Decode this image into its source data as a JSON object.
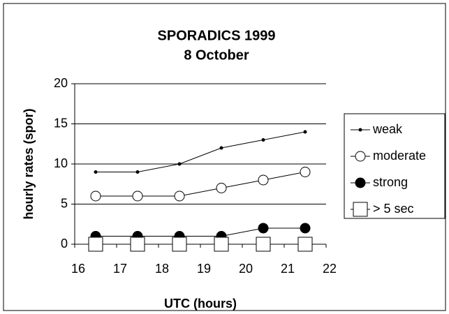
{
  "chart_data": {
    "type": "line",
    "title": [
      "SPORADICS 1999",
      "8 October"
    ],
    "x_label": "UTC (hours)",
    "y_label": "hourly rates (spor)",
    "x": [
      16.5,
      17.5,
      18.5,
      19.5,
      20.5,
      21.5
    ],
    "series": [
      {
        "name": "weak",
        "color": "#000000",
        "marker": "dot",
        "values": [
          9,
          9,
          10,
          12,
          13,
          14
        ]
      },
      {
        "name": "moderate",
        "color": "#000000",
        "marker": "open-circle",
        "values": [
          6,
          6,
          6,
          7,
          8,
          9
        ]
      },
      {
        "name": "strong",
        "color": "#000000",
        "marker": "filled-circle",
        "values": [
          1,
          1,
          1,
          1,
          2,
          2
        ]
      },
      {
        "name": "> 5 sec",
        "color": "#000000",
        "marker": "open-square",
        "values": [
          0,
          0,
          0,
          0,
          0,
          0
        ]
      }
    ],
    "xlim": [
      16,
      22
    ],
    "xticks": [
      16,
      17,
      18,
      19,
      20,
      21,
      22
    ],
    "ylim": [
      0,
      20
    ],
    "yticks": [
      0,
      5,
      10,
      15,
      20
    ],
    "grid": true,
    "legend": "right"
  }
}
